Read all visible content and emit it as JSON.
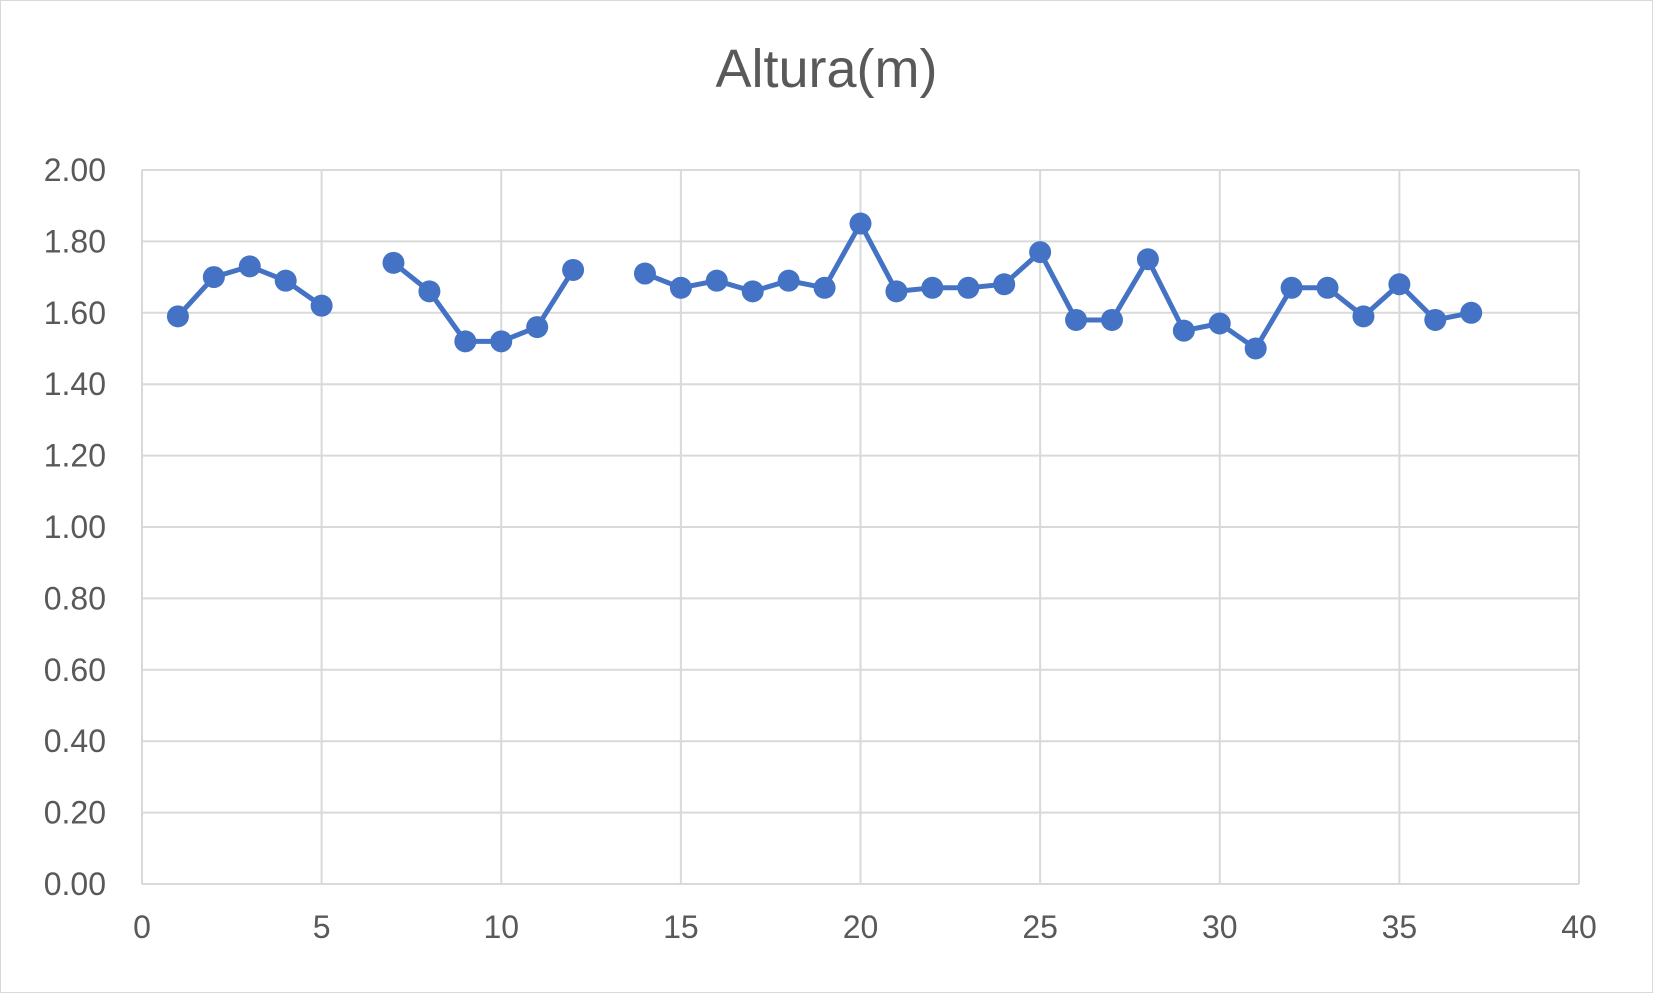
{
  "chart_data": {
    "type": "scatter",
    "title": "Altura(m)",
    "xlabel": "",
    "ylabel": "",
    "xlim": [
      0,
      40
    ],
    "ylim": [
      0,
      2
    ],
    "x_ticks": [
      "0",
      "5",
      "10",
      "15",
      "20",
      "25",
      "30",
      "35",
      "40"
    ],
    "y_ticks": [
      "0.00",
      "0.20",
      "0.40",
      "0.60",
      "0.80",
      "1.00",
      "1.20",
      "1.40",
      "1.60",
      "1.80",
      "2.00"
    ],
    "grid": true,
    "legend": "none",
    "series": [
      {
        "color": "#4472c4",
        "points": [
          [
            1,
            1.59
          ],
          [
            2,
            1.7
          ],
          [
            3,
            1.73
          ],
          [
            4,
            1.69
          ],
          [
            5,
            1.62
          ],
          [
            7,
            1.74
          ],
          [
            8,
            1.66
          ],
          [
            9,
            1.52
          ],
          [
            10,
            1.52
          ],
          [
            11,
            1.56
          ],
          [
            12,
            1.72
          ],
          [
            14,
            1.71
          ],
          [
            15,
            1.67
          ],
          [
            16,
            1.69
          ],
          [
            17,
            1.66
          ],
          [
            18,
            1.69
          ],
          [
            19,
            1.67
          ],
          [
            20,
            1.85
          ],
          [
            21,
            1.66
          ],
          [
            22,
            1.67
          ],
          [
            23,
            1.67
          ],
          [
            24,
            1.68
          ],
          [
            25,
            1.77
          ],
          [
            26,
            1.58
          ],
          [
            27,
            1.58
          ],
          [
            28,
            1.75
          ],
          [
            29,
            1.55
          ],
          [
            30,
            1.57
          ],
          [
            31,
            1.5
          ],
          [
            32,
            1.67
          ],
          [
            33,
            1.67
          ],
          [
            34,
            1.59
          ],
          [
            35,
            1.68
          ],
          [
            36,
            1.58
          ],
          [
            37,
            1.6
          ]
        ]
      }
    ]
  }
}
